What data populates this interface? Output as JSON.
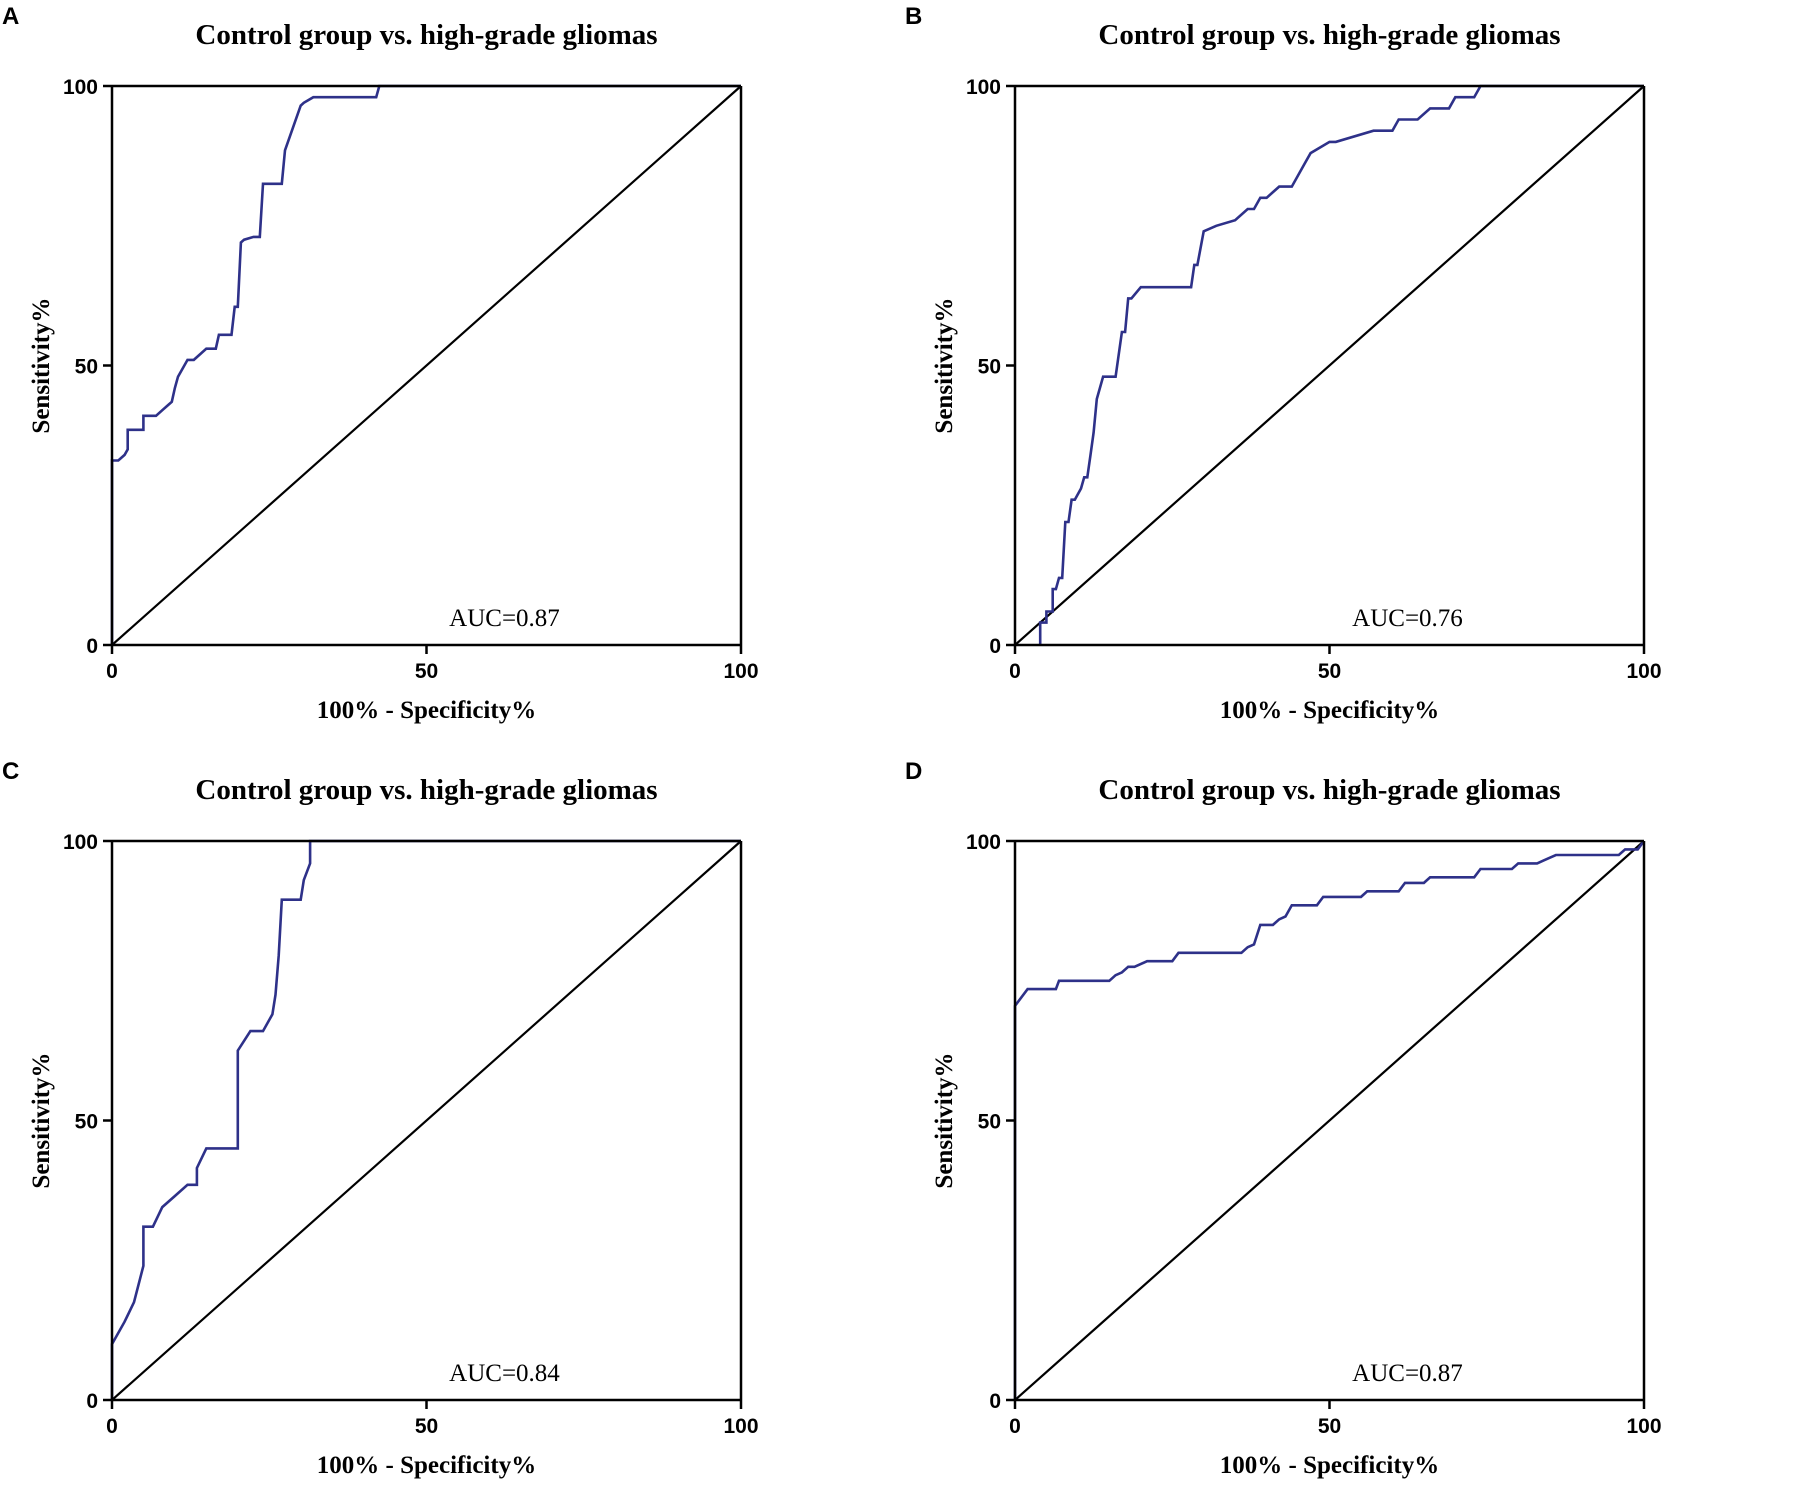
{
  "chart_data": [
    {
      "panel_label": "A",
      "type": "line",
      "title": "Control group vs. high-grade gliomas",
      "xlabel": "100% - Specificity%",
      "ylabel": "Sensitivity%",
      "xlim": [
        0,
        100
      ],
      "ylim": [
        0,
        100
      ],
      "xticks": [
        "0",
        "50",
        "100"
      ],
      "yticks": [
        "0",
        "50",
        "100"
      ],
      "annotation": "AUC=0.87",
      "colors": {
        "roc": "#2e3189",
        "reference": "#000000"
      },
      "series": [
        {
          "name": "ROC",
          "x": [
            0,
            0,
            1,
            2,
            2.5,
            2.5,
            5,
            5,
            7,
            8,
            9,
            9.5,
            10,
            10.5,
            12,
            13,
            15,
            16.5,
            17,
            19,
            19.5,
            20,
            20.5,
            21,
            22.5,
            23.5,
            24,
            27,
            27.5,
            30,
            30.5,
            32,
            42,
            42.5,
            100
          ],
          "y": [
            0,
            33,
            33,
            34,
            35,
            38.5,
            38.5,
            41,
            41,
            42,
            43,
            43.5,
            46,
            48,
            51,
            51,
            53,
            53,
            55.5,
            55.5,
            60.5,
            60.5,
            72,
            72.5,
            73,
            73,
            82.5,
            82.5,
            88.5,
            96.5,
            97,
            98,
            98,
            100,
            100
          ]
        },
        {
          "name": "Reference",
          "x": [
            0,
            100
          ],
          "y": [
            0,
            100
          ]
        }
      ]
    },
    {
      "panel_label": "B",
      "type": "line",
      "title": "Control group vs. high-grade gliomas",
      "xlabel": "100% - Specificity%",
      "ylabel": "Sensitivity%",
      "xlim": [
        0,
        100
      ],
      "ylim": [
        0,
        100
      ],
      "xticks": [
        "0",
        "50",
        "100"
      ],
      "yticks": [
        "0",
        "50",
        "100"
      ],
      "annotation": "AUC=0.76",
      "colors": {
        "roc": "#2e3189",
        "reference": "#000000"
      },
      "series": [
        {
          "name": "ROC",
          "x": [
            4,
            4,
            5,
            5,
            6,
            6,
            6.5,
            7,
            7.5,
            8,
            8.5,
            9,
            9.5,
            10,
            10.5,
            11,
            11.5,
            12,
            12.5,
            13,
            14,
            15,
            15.5,
            16,
            17,
            17.5,
            18,
            18.5,
            20,
            22,
            24,
            26,
            28,
            28.5,
            29,
            30,
            32,
            35,
            37,
            38,
            39,
            40,
            42,
            43,
            44,
            46,
            47,
            50,
            51,
            57,
            58,
            60,
            61,
            64,
            66,
            69,
            70,
            73,
            74,
            100
          ],
          "y": [
            0,
            4,
            4,
            6,
            6,
            10,
            10,
            12,
            12,
            22,
            22,
            26,
            26,
            27,
            28,
            30,
            30,
            34,
            38,
            44,
            48,
            48,
            48,
            48,
            56,
            56,
            62,
            62,
            64,
            64,
            64,
            64,
            64,
            68,
            68,
            74,
            75,
            76,
            78,
            78,
            80,
            80,
            82,
            82,
            82,
            86,
            88,
            90,
            90,
            92,
            92,
            92,
            94,
            94,
            96,
            96,
            98,
            98,
            100,
            100
          ]
        },
        {
          "name": "Reference",
          "x": [
            0,
            100
          ],
          "y": [
            0,
            100
          ]
        }
      ]
    },
    {
      "panel_label": "C",
      "type": "line",
      "title": "Control group vs. high-grade gliomas",
      "xlabel": "100% - Specificity%",
      "ylabel": "Sensitivity%",
      "xlim": [
        0,
        100
      ],
      "ylim": [
        0,
        100
      ],
      "xticks": [
        "0",
        "50",
        "100"
      ],
      "yticks": [
        "0",
        "50",
        "100"
      ],
      "annotation": "AUC=0.84",
      "colors": {
        "roc": "#2e3189",
        "reference": "#000000"
      },
      "series": [
        {
          "name": "ROC",
          "x": [
            0,
            0,
            2,
            3.5,
            5,
            5,
            6.5,
            8,
            10,
            12,
            13.5,
            13.5,
            15,
            20,
            20,
            22,
            24,
            25.5,
            26,
            26.5,
            27,
            30,
            30.5,
            31.5,
            31.5,
            100
          ],
          "y": [
            0,
            10,
            14,
            17.5,
            24,
            31,
            31,
            34.5,
            36.5,
            38.5,
            38.5,
            41.5,
            45,
            45,
            62.5,
            66,
            66,
            69,
            72.5,
            79.5,
            89.5,
            89.5,
            93,
            96,
            100,
            100
          ]
        },
        {
          "name": "Reference",
          "x": [
            0,
            100
          ],
          "y": [
            0,
            100
          ]
        }
      ]
    },
    {
      "panel_label": "D",
      "type": "line",
      "title": "Control group vs. high-grade gliomas",
      "xlabel": "100% - Specificity%",
      "ylabel": "Sensitivity%",
      "xlim": [
        0,
        100
      ],
      "ylim": [
        0,
        100
      ],
      "xticks": [
        "0",
        "50",
        "100"
      ],
      "yticks": [
        "0",
        "50",
        "100"
      ],
      "annotation": "AUC=0.87",
      "colors": {
        "roc": "#2e3189",
        "reference": "#000000"
      },
      "series": [
        {
          "name": "ROC",
          "x": [
            0,
            0,
            2,
            6.5,
            7,
            15,
            16,
            17,
            18,
            19,
            21,
            25,
            26,
            36,
            37,
            38,
            39,
            41,
            42,
            43,
            44,
            48,
            49,
            55,
            56,
            61,
            62,
            65,
            66,
            73,
            74,
            79,
            80,
            83,
            84,
            85,
            86,
            96,
            97,
            99,
            100
          ],
          "y": [
            0,
            70.5,
            73.5,
            73.5,
            75,
            75,
            76,
            76.5,
            77.5,
            77.5,
            78.5,
            78.5,
            80,
            80,
            81,
            81.5,
            85,
            85,
            86,
            86.5,
            88.5,
            88.5,
            90,
            90,
            91,
            91,
            92.5,
            92.5,
            93.5,
            93.5,
            95,
            95,
            96,
            96,
            96.5,
            97,
            97.5,
            97.5,
            98.5,
            98.5,
            100
          ]
        },
        {
          "name": "Reference",
          "x": [
            0,
            100
          ],
          "y": [
            0,
            100
          ]
        }
      ]
    }
  ]
}
